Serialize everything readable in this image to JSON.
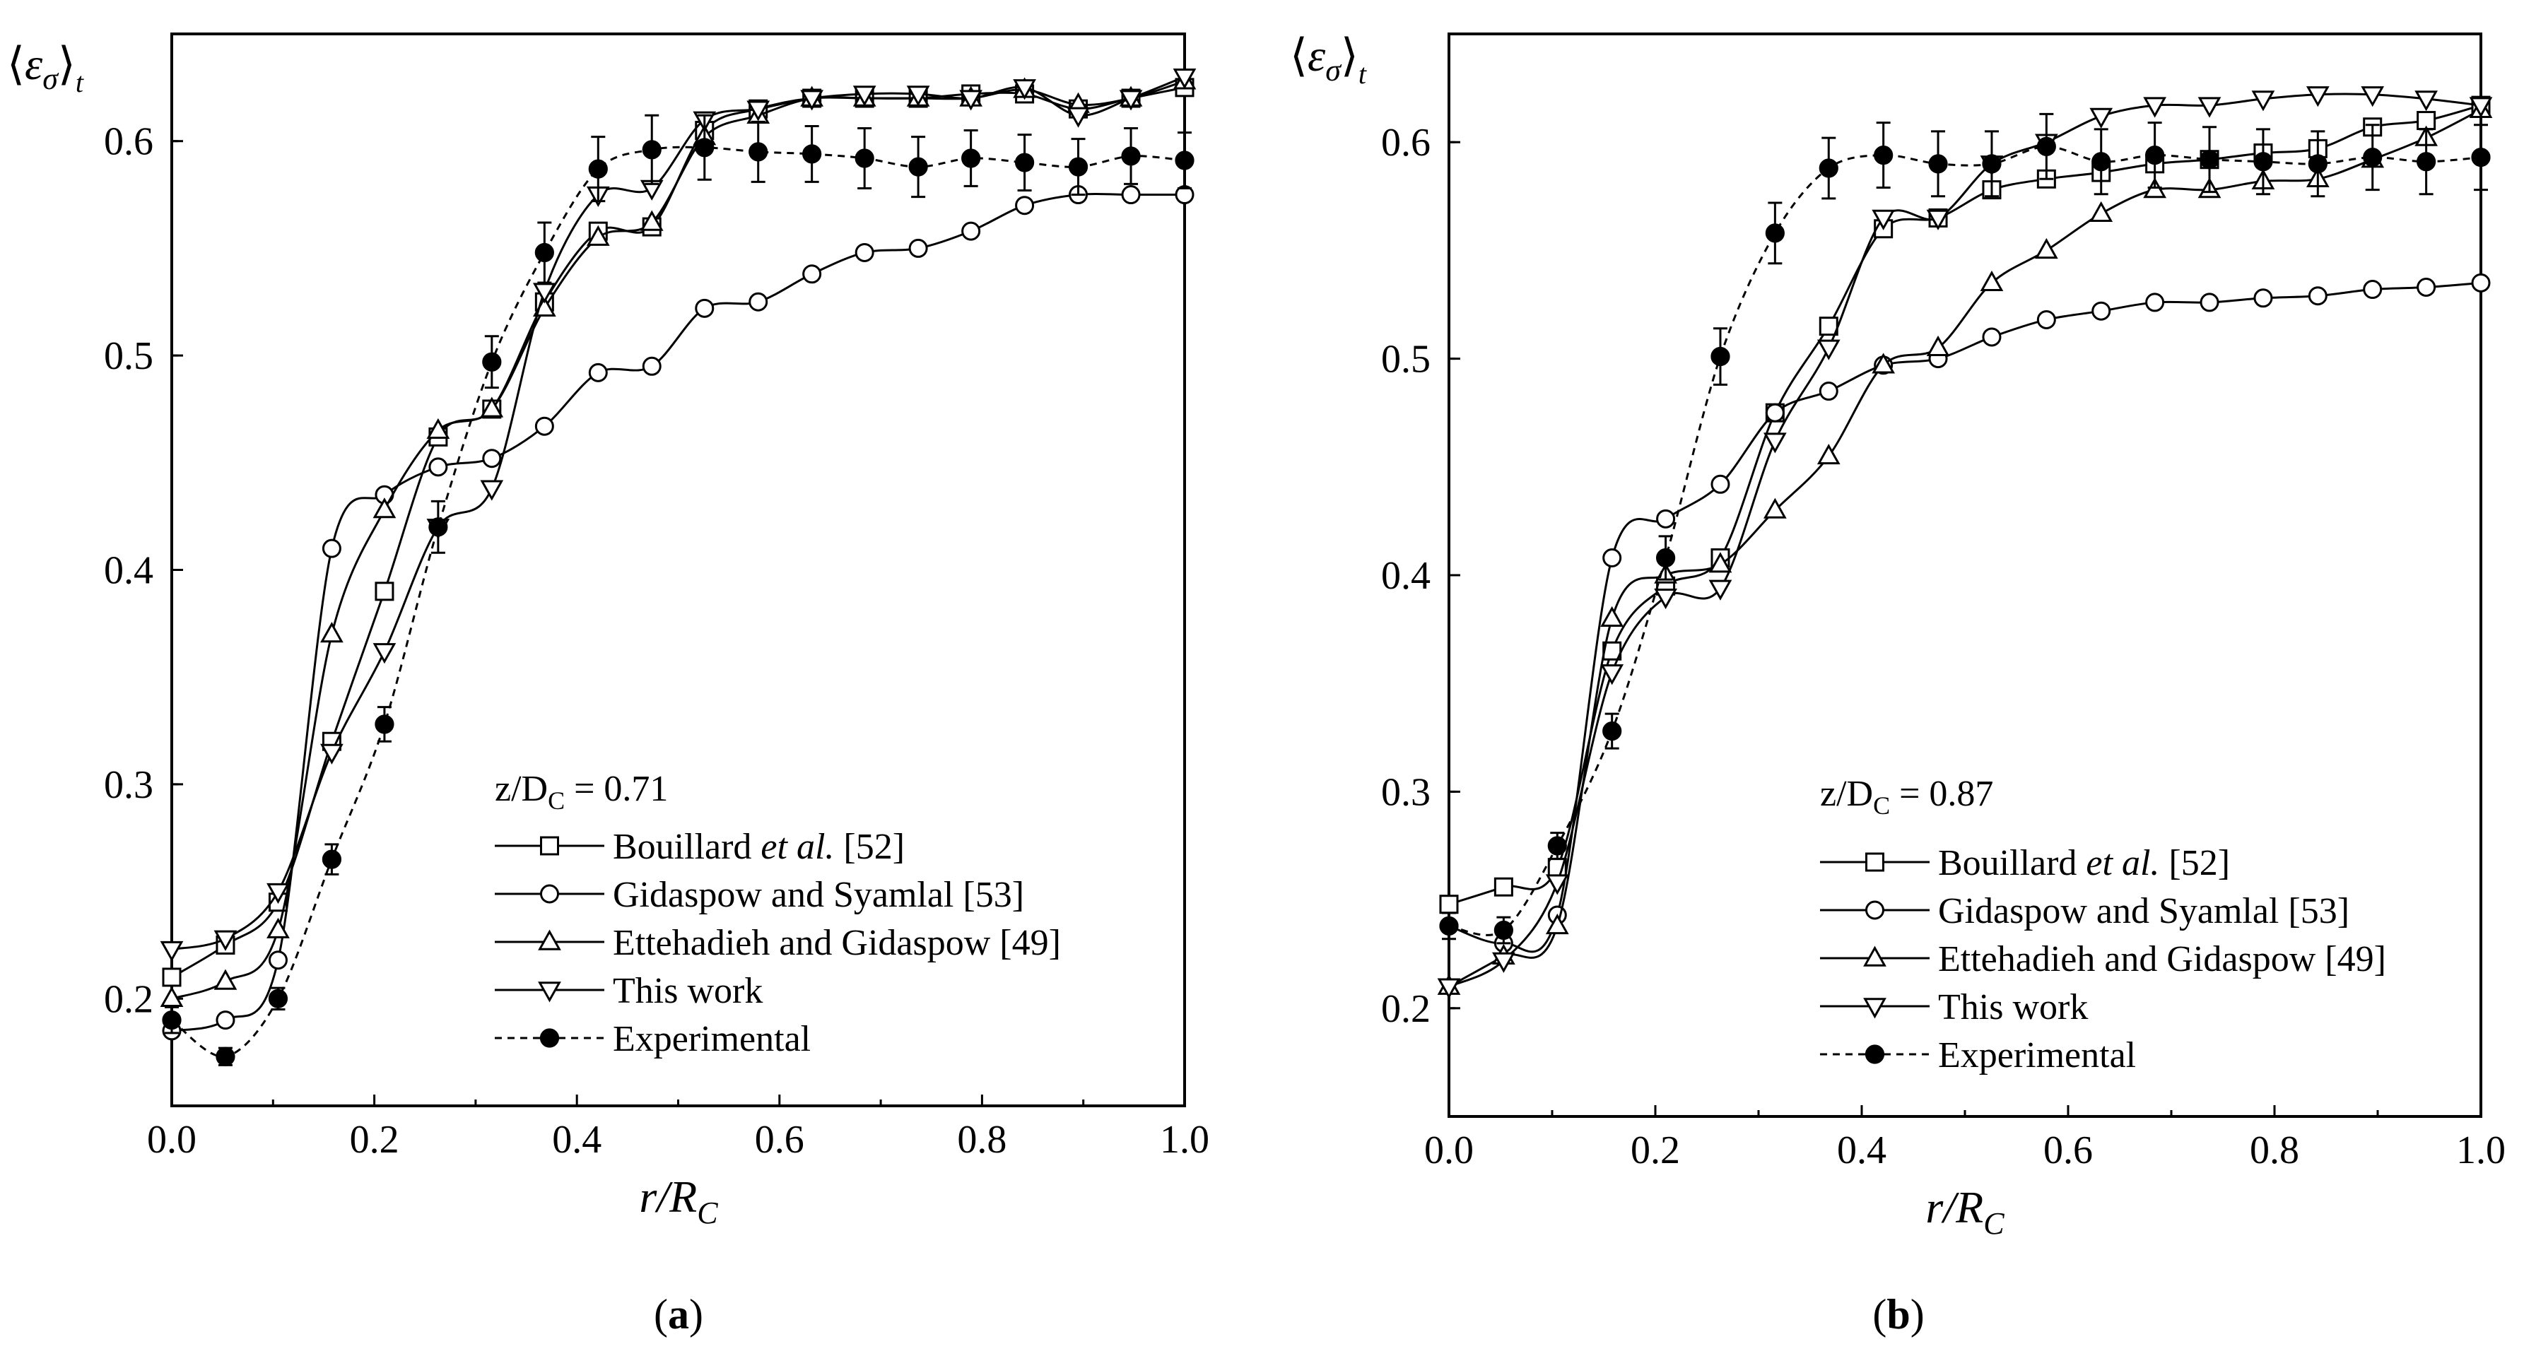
{
  "chart_data": [
    {
      "type": "line",
      "panel_label": "a",
      "annotation": "z/D_C = 0.71",
      "annotation_main": "z/D",
      "annotation_sub": "C",
      "annotation_value": " = 0.71",
      "xlabel": "r/R_C",
      "ylabel": "⟨ε_σ⟩_t",
      "xlim": [
        0.0,
        1.0
      ],
      "ylim": [
        0.15,
        0.65
      ],
      "xticks": [
        "0.0",
        "0.2",
        "0.4",
        "0.6",
        "0.8",
        "1.0"
      ],
      "yticks": [
        "0.2",
        "0.3",
        "0.4",
        "0.5",
        "0.6"
      ],
      "series": [
        {
          "name": "Bouillard et al. [52]",
          "name_main": "Bouillard ",
          "name_italic": "et al.",
          "name_ref": " [52]",
          "marker": "square",
          "x": [
            0.0,
            0.053,
            0.105,
            0.158,
            0.21,
            0.263,
            0.316,
            0.368,
            0.421,
            0.474,
            0.526,
            0.579,
            0.632,
            0.684,
            0.737,
            0.789,
            0.842,
            0.895,
            0.947,
            1.0
          ],
          "y": [
            0.21,
            0.225,
            0.245,
            0.32,
            0.39,
            0.462,
            0.475,
            0.525,
            0.558,
            0.56,
            0.605,
            0.615,
            0.62,
            0.62,
            0.62,
            0.622,
            0.622,
            0.615,
            0.62,
            0.625
          ]
        },
        {
          "name": "Gidaspow and Syamlal [53]",
          "marker": "circle",
          "x": [
            0.0,
            0.053,
            0.105,
            0.158,
            0.21,
            0.263,
            0.316,
            0.368,
            0.421,
            0.474,
            0.526,
            0.579,
            0.632,
            0.684,
            0.737,
            0.789,
            0.842,
            0.895,
            0.947,
            1.0
          ],
          "y": [
            0.185,
            0.19,
            0.218,
            0.41,
            0.435,
            0.448,
            0.452,
            0.467,
            0.492,
            0.495,
            0.522,
            0.525,
            0.538,
            0.548,
            0.55,
            0.558,
            0.57,
            0.575,
            0.575,
            0.575
          ]
        },
        {
          "name": "Ettehadieh and Gidaspow [49]",
          "marker": "triangle-up",
          "x": [
            0.0,
            0.053,
            0.105,
            0.158,
            0.21,
            0.263,
            0.316,
            0.368,
            0.421,
            0.474,
            0.526,
            0.579,
            0.632,
            0.684,
            0.737,
            0.789,
            0.842,
            0.895,
            0.947,
            1.0
          ],
          "y": [
            0.2,
            0.208,
            0.232,
            0.37,
            0.428,
            0.465,
            0.475,
            0.522,
            0.555,
            0.562,
            0.602,
            0.612,
            0.62,
            0.62,
            0.62,
            0.62,
            0.624,
            0.617,
            0.62,
            0.628
          ]
        },
        {
          "name": "This work",
          "marker": "triangle-down",
          "x": [
            0.0,
            0.053,
            0.105,
            0.158,
            0.21,
            0.263,
            0.316,
            0.368,
            0.421,
            0.474,
            0.526,
            0.579,
            0.632,
            0.684,
            0.737,
            0.789,
            0.842,
            0.895,
            0.947,
            1.0
          ],
          "y": [
            0.223,
            0.228,
            0.25,
            0.315,
            0.362,
            0.42,
            0.438,
            0.53,
            0.575,
            0.578,
            0.61,
            0.615,
            0.62,
            0.622,
            0.622,
            0.62,
            0.625,
            0.612,
            0.62,
            0.63
          ]
        },
        {
          "name": "Experimental",
          "marker": "filled-circle",
          "dashed": true,
          "x": [
            0.0,
            0.053,
            0.105,
            0.158,
            0.21,
            0.263,
            0.316,
            0.368,
            0.421,
            0.474,
            0.526,
            0.579,
            0.632,
            0.684,
            0.737,
            0.789,
            0.842,
            0.895,
            0.947,
            1.0
          ],
          "y": [
            0.19,
            0.173,
            0.2,
            0.265,
            0.328,
            0.42,
            0.497,
            0.548,
            0.587,
            0.596,
            0.597,
            0.595,
            0.594,
            0.592,
            0.588,
            0.592,
            0.59,
            0.588,
            0.593,
            0.591
          ],
          "error": [
            0.006,
            0.004,
            0.005,
            0.007,
            0.008,
            0.012,
            0.012,
            0.014,
            0.015,
            0.016,
            0.015,
            0.014,
            0.013,
            0.014,
            0.014,
            0.013,
            0.013,
            0.013,
            0.013,
            0.013
          ]
        }
      ]
    },
    {
      "type": "line",
      "panel_label": "b",
      "annotation": "z/D_C = 0.87",
      "annotation_main": "z/D",
      "annotation_sub": "C",
      "annotation_value": " = 0.87",
      "xlabel": "r/R_C",
      "ylabel": "⟨ε_σ⟩_t",
      "xlim": [
        0.0,
        1.0
      ],
      "ylim": [
        0.15,
        0.65
      ],
      "xticks": [
        "0.0",
        "0.2",
        "0.4",
        "0.6",
        "0.8",
        "1.0"
      ],
      "yticks": [
        "0.2",
        "0.3",
        "0.4",
        "0.5",
        "0.6"
      ],
      "series": [
        {
          "name": "Bouillard et al. [52]",
          "name_main": "Bouillard ",
          "name_italic": "et al.",
          "name_ref": " [52]",
          "marker": "square",
          "x": [
            0.0,
            0.053,
            0.105,
            0.158,
            0.21,
            0.263,
            0.316,
            0.368,
            0.421,
            0.474,
            0.526,
            0.579,
            0.632,
            0.684,
            0.737,
            0.789,
            0.842,
            0.895,
            0.947,
            1.0
          ],
          "y": [
            0.248,
            0.256,
            0.265,
            0.365,
            0.395,
            0.408,
            0.475,
            0.515,
            0.56,
            0.565,
            0.578,
            0.583,
            0.586,
            0.59,
            0.592,
            0.595,
            0.597,
            0.607,
            0.61,
            0.617
          ]
        },
        {
          "name": "Gidaspow and Syamlal [53]",
          "marker": "circle",
          "x": [
            0.0,
            0.053,
            0.105,
            0.158,
            0.21,
            0.263,
            0.316,
            0.368,
            0.421,
            0.474,
            0.526,
            0.579,
            0.632,
            0.684,
            0.737,
            0.789,
            0.842,
            0.895,
            0.947,
            1.0
          ],
          "y": [
            0.238,
            0.23,
            0.243,
            0.408,
            0.426,
            0.442,
            0.475,
            0.485,
            0.497,
            0.5,
            0.51,
            0.518,
            0.522,
            0.526,
            0.526,
            0.528,
            0.529,
            0.532,
            0.533,
            0.535
          ]
        },
        {
          "name": "Ettehadieh and Gidaspow [49]",
          "marker": "triangle-up",
          "x": [
            0.0,
            0.053,
            0.105,
            0.158,
            0.21,
            0.263,
            0.316,
            0.368,
            0.421,
            0.474,
            0.526,
            0.579,
            0.632,
            0.684,
            0.737,
            0.789,
            0.842,
            0.895,
            0.947,
            1.0
          ],
          "y": [
            0.21,
            0.224,
            0.238,
            0.38,
            0.4,
            0.405,
            0.43,
            0.455,
            0.497,
            0.505,
            0.535,
            0.55,
            0.567,
            0.578,
            0.578,
            0.582,
            0.583,
            0.592,
            0.602,
            0.615
          ]
        },
        {
          "name": "This work",
          "marker": "triangle-down",
          "x": [
            0.0,
            0.053,
            0.105,
            0.158,
            0.21,
            0.263,
            0.316,
            0.368,
            0.421,
            0.474,
            0.526,
            0.579,
            0.632,
            0.684,
            0.737,
            0.789,
            0.842,
            0.895,
            0.947,
            1.0
          ],
          "y": [
            0.21,
            0.222,
            0.258,
            0.355,
            0.39,
            0.394,
            0.462,
            0.505,
            0.565,
            0.565,
            0.59,
            0.6,
            0.612,
            0.617,
            0.617,
            0.62,
            0.622,
            0.622,
            0.62,
            0.617
          ]
        },
        {
          "name": "Experimental",
          "marker": "filled-circle",
          "dashed": true,
          "x": [
            0.0,
            0.053,
            0.105,
            0.158,
            0.21,
            0.263,
            0.316,
            0.368,
            0.421,
            0.474,
            0.526,
            0.579,
            0.632,
            0.684,
            0.737,
            0.789,
            0.842,
            0.895,
            0.947,
            1.0
          ],
          "y": [
            0.238,
            0.236,
            0.275,
            0.328,
            0.408,
            0.501,
            0.558,
            0.588,
            0.594,
            0.59,
            0.59,
            0.598,
            0.591,
            0.594,
            0.592,
            0.591,
            0.59,
            0.593,
            0.591,
            0.593
          ],
          "error": [
            0.006,
            0.006,
            0.006,
            0.008,
            0.01,
            0.013,
            0.014,
            0.014,
            0.015,
            0.015,
            0.015,
            0.015,
            0.015,
            0.015,
            0.015,
            0.015,
            0.015,
            0.015,
            0.015,
            0.015
          ]
        }
      ]
    }
  ]
}
